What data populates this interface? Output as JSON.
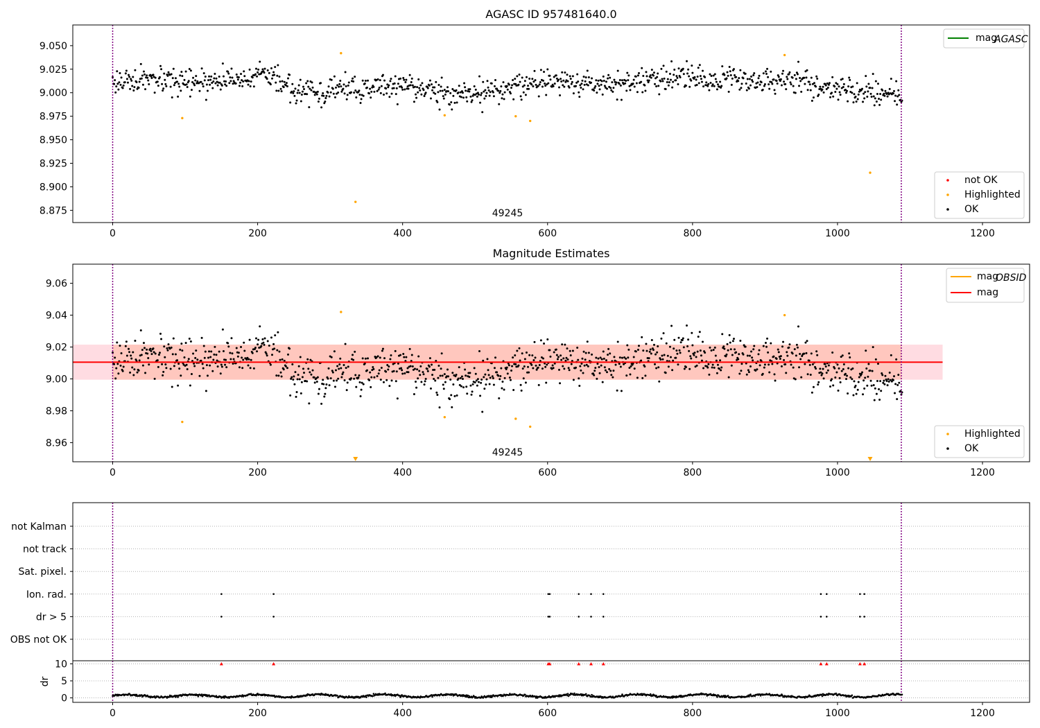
{
  "colors": {
    "ok": "#000000",
    "highlighted": "#ffa500",
    "not_ok": "#ff0000",
    "agasc_line": "#008000",
    "obsid_line": "#ffa500",
    "mag_line": "#ff0000",
    "band_outer": "#ffc0cb",
    "band_inner": "#ffa07a",
    "vline": "#800080",
    "grid": "#b0b0b0"
  },
  "chart_data": [
    {
      "type": "scatter",
      "title": "AGASC ID 957481640.0",
      "xlim": [
        -55,
        1265
      ],
      "ylim": [
        8.862,
        9.072
      ],
      "xticks": [
        0,
        200,
        400,
        600,
        800,
        1000,
        1200
      ],
      "yticks": [
        8.875,
        8.9,
        8.925,
        8.95,
        8.975,
        9.0,
        9.025,
        9.05
      ],
      "ytick_labels": [
        "8.875",
        "8.900",
        "8.925",
        "8.950",
        "8.975",
        "9.000",
        "9.025",
        "9.050"
      ],
      "vlines": [
        0,
        1088
      ],
      "obsid_label": {
        "text": "49245",
        "x": 544
      },
      "legend_lines": [
        {
          "label": "mag",
          "sub": "AGASC",
          "color": "#008000"
        }
      ],
      "legend_points": [
        {
          "label": "not OK",
          "color": "#ff0000"
        },
        {
          "label": "Highlighted",
          "color": "#ffa500"
        },
        {
          "label": "OK",
          "color": "#000000"
        }
      ],
      "ok_series": {
        "n": 1090,
        "base": 9.008,
        "amp": 0.012,
        "seed": 17
      },
      "highlighted": [
        [
          96,
          8.973
        ],
        [
          315,
          9.042
        ],
        [
          335,
          8.884
        ],
        [
          458,
          8.976
        ],
        [
          556,
          8.975
        ],
        [
          576,
          8.97
        ],
        [
          927,
          9.04
        ],
        [
          1045,
          8.915
        ]
      ]
    },
    {
      "type": "scatter",
      "title": "Magnitude Estimates",
      "xlim": [
        -55,
        1265
      ],
      "ylim": [
        8.948,
        9.072
      ],
      "xticks": [
        0,
        200,
        400,
        600,
        800,
        1000,
        1200
      ],
      "yticks": [
        8.96,
        8.98,
        9.0,
        9.02,
        9.04,
        9.06
      ],
      "ytick_labels": [
        "8.96",
        "8.98",
        "9.00",
        "9.02",
        "9.04",
        "9.06"
      ],
      "vlines": [
        0,
        1088
      ],
      "obsid_label": {
        "text": "49245",
        "x": 544
      },
      "mag_line": {
        "y": 9.0105,
        "x": [
          -55,
          1145
        ]
      },
      "band_outer": {
        "y0": 8.9995,
        "y1": 9.0215,
        "x": [
          -55,
          1145
        ]
      },
      "band_inner": {
        "y0": 8.9995,
        "y1": 9.0215,
        "x": [
          0,
          1088
        ]
      },
      "legend_lines": [
        {
          "label": "mag",
          "sub": "OBSID",
          "color": "#ffa500"
        },
        {
          "label": "mag",
          "sub": "",
          "color": "#ff0000"
        }
      ],
      "legend_points": [
        {
          "label": "Highlighted",
          "color": "#ffa500"
        },
        {
          "label": "OK",
          "color": "#000000"
        }
      ],
      "ok_series": {
        "n": 1090,
        "base": 9.008,
        "amp": 0.012,
        "seed": 17
      },
      "highlighted": [
        [
          96,
          8.973
        ],
        [
          315,
          9.042
        ],
        [
          458,
          8.976
        ],
        [
          556,
          8.975
        ],
        [
          576,
          8.97
        ],
        [
          927,
          9.04
        ]
      ],
      "clipped_low": [
        335,
        1045
      ]
    },
    {
      "type": "scatter",
      "xlim": [
        -55,
        1265
      ],
      "flag_rows": [
        "not Kalman",
        "not track",
        "Sat. pixel.",
        "Ion. rad.",
        "dr > 5",
        "OBS not OK"
      ],
      "flag_events": {
        "Ion. rad.": [
          150,
          222,
          601,
          603,
          643,
          660,
          677,
          977,
          985,
          1031,
          1037
        ],
        "dr > 5": [
          150,
          222,
          601,
          603,
          643,
          660,
          677,
          977,
          985,
          1031,
          1037
        ]
      },
      "vlines": [
        0,
        1088
      ],
      "dr_ylim": [
        -0.5,
        10.5
      ],
      "dr_yticks": [
        0,
        5,
        10
      ],
      "dr_ylabel": "dr",
      "dr_high": [
        150,
        222,
        601,
        603,
        643,
        660,
        677,
        977,
        985,
        1031,
        1037
      ],
      "xticks": [
        0,
        200,
        400,
        600,
        800,
        1000,
        1200
      ]
    }
  ]
}
